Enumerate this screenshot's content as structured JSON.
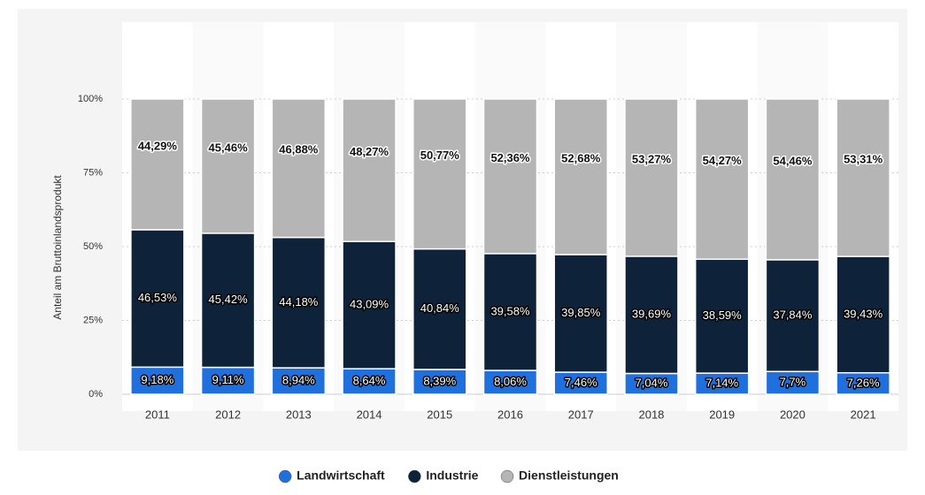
{
  "chart_data": {
    "type": "stacked_bar",
    "y_label": "Anteil am Bruttoinlandsprodukt",
    "categories": [
      "2011",
      "2012",
      "2013",
      "2014",
      "2015",
      "2016",
      "2017",
      "2018",
      "2019",
      "2020",
      "2021"
    ],
    "series": [
      {
        "name": "Landwirtschaft",
        "color": "#1f6fdc",
        "values": [
          9.18,
          9.11,
          8.94,
          8.64,
          8.39,
          8.06,
          7.46,
          7.04,
          7.14,
          7.7,
          7.26
        ],
        "value_labels": [
          "9,18%",
          "9,11%",
          "8,94%",
          "8,64%",
          "8,39%",
          "8,06%",
          "7,46%",
          "7,04%",
          "7,14%",
          "7,7%",
          "7,26%"
        ]
      },
      {
        "name": "Industrie",
        "color": "#0e2239",
        "values": [
          46.53,
          45.42,
          44.18,
          43.09,
          40.84,
          39.58,
          39.85,
          39.69,
          38.59,
          37.84,
          39.43
        ],
        "value_labels": [
          "46,53%",
          "45,42%",
          "44,18%",
          "43,09%",
          "40,84%",
          "39,58%",
          "39,85%",
          "39,69%",
          "38,59%",
          "37,84%",
          "39,43%"
        ]
      },
      {
        "name": "Dienstleistungen",
        "color": "#b5b5b5",
        "values": [
          44.29,
          45.46,
          46.88,
          48.27,
          50.77,
          52.36,
          52.68,
          53.27,
          54.27,
          54.46,
          53.31
        ],
        "value_labels": [
          "44,29%",
          "45,46%",
          "46,88%",
          "48,27%",
          "50,77%",
          "52,36%",
          "52,68%",
          "53,27%",
          "54,27%",
          "54,46%",
          "53,31%"
        ]
      }
    ],
    "ylim": [
      0,
      100
    ],
    "yticks": [
      {
        "value": 0,
        "label": "0%"
      },
      {
        "value": 25,
        "label": "25%"
      },
      {
        "value": 50,
        "label": "50%"
      },
      {
        "value": 75,
        "label": "75%"
      },
      {
        "value": 100,
        "label": "100%"
      }
    ],
    "grid": true,
    "legend": "bottom"
  }
}
